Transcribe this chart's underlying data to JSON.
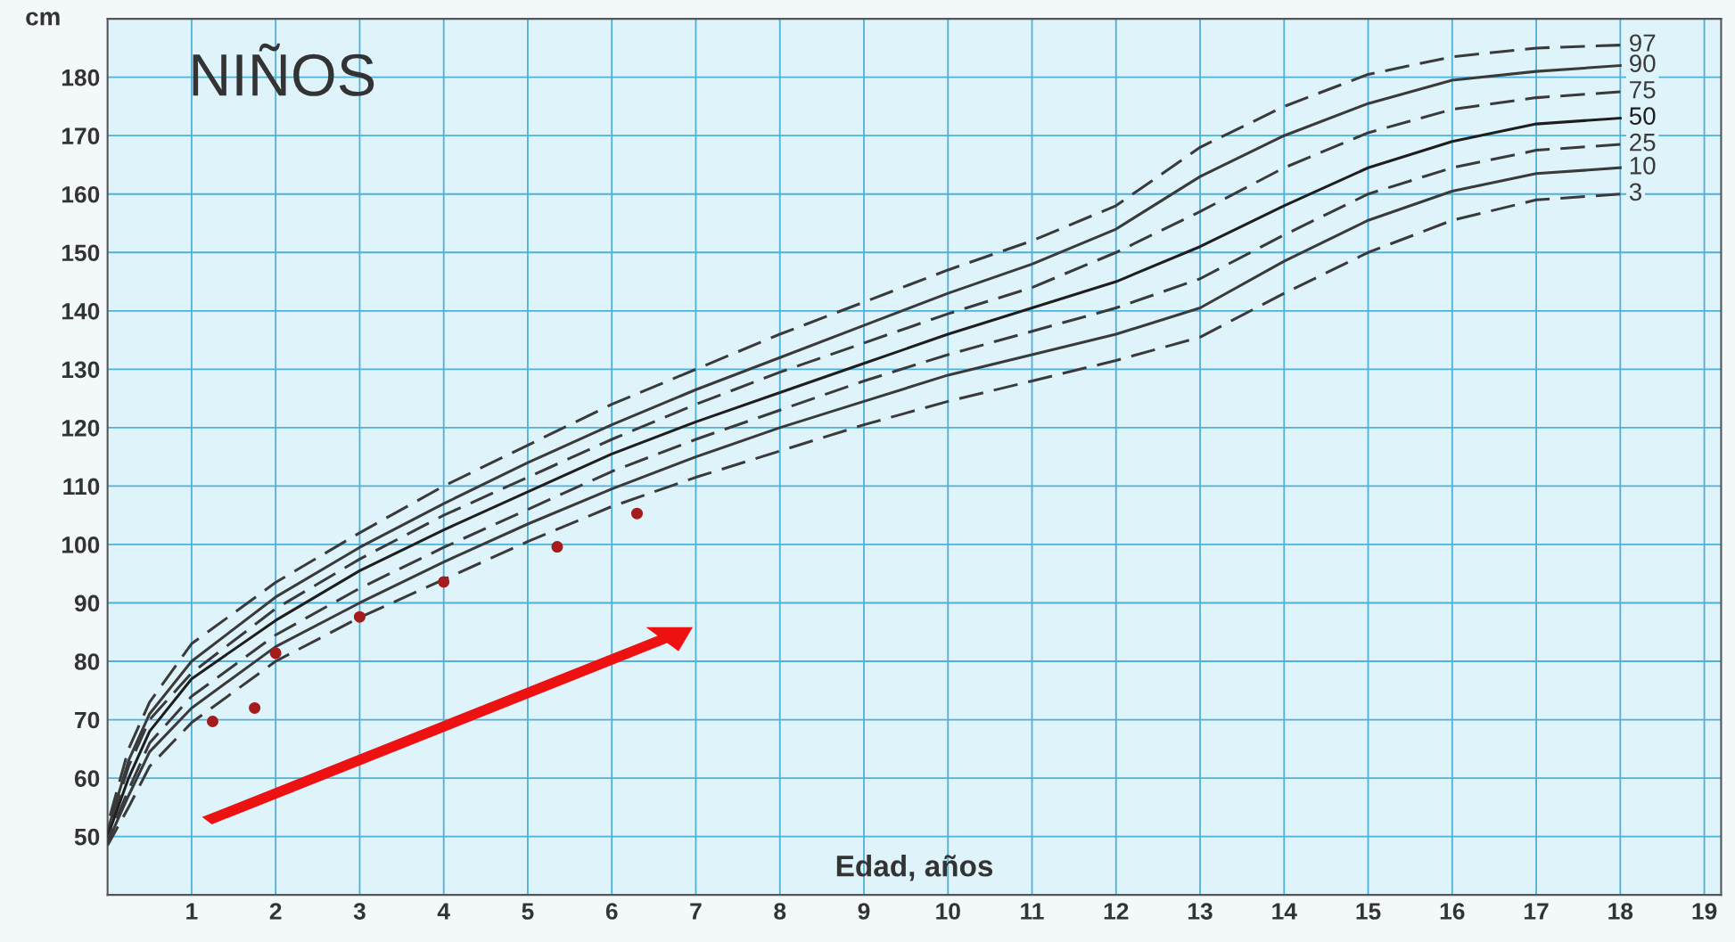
{
  "chart_data": {
    "type": "line",
    "title": "NIÑOS",
    "xlabel": "Edad, años",
    "ylabel": "cm",
    "xlim": [
      0,
      19.2
    ],
    "ylim": [
      40,
      190
    ],
    "xticks": [
      1,
      2,
      3,
      4,
      5,
      6,
      7,
      8,
      9,
      10,
      11,
      12,
      13,
      14,
      15,
      16,
      17,
      18,
      19
    ],
    "yticks": [
      50,
      60,
      70,
      80,
      90,
      100,
      110,
      120,
      130,
      140,
      150,
      160,
      170,
      180
    ],
    "grid": true,
    "legend": false,
    "marker": "none",
    "x": [
      0,
      0.25,
      0.5,
      1,
      2,
      3,
      4,
      5,
      6,
      7,
      8,
      9,
      10,
      11,
      12,
      13,
      14,
      15,
      16,
      17,
      18
    ],
    "series": [
      {
        "name": "97",
        "color": "#3a3a3a",
        "line_style": "dashed",
        "values": [
          52,
          65,
          73,
          83,
          93.5,
          102,
          110,
          117,
          124,
          130,
          136,
          141.5,
          147,
          152,
          158,
          168,
          175,
          180.5,
          183.5,
          185,
          185.5
        ]
      },
      {
        "name": "90",
        "color": "#3a3a3a",
        "line_style": "solid",
        "values": [
          51,
          63,
          71,
          80,
          91,
          99.5,
          107,
          114,
          120.5,
          126.5,
          132,
          137.5,
          143,
          148,
          154,
          163,
          170,
          175.5,
          179.5,
          181,
          182
        ]
      },
      {
        "name": "75",
        "color": "#3a3a3a",
        "line_style": "dashed",
        "values": [
          50.5,
          62,
          70,
          78,
          89,
          97.5,
          105,
          111.5,
          118,
          124,
          129.5,
          134.5,
          139.5,
          144,
          150,
          157,
          164.5,
          170.5,
          174.5,
          176.5,
          177.5
        ]
      },
      {
        "name": "50",
        "color": "#1e1e1e",
        "line_style": "solid",
        "values": [
          50,
          60,
          68,
          77,
          87,
          95.5,
          102.5,
          109,
          115.5,
          121,
          126,
          131,
          136,
          140.5,
          145,
          151,
          158,
          164.5,
          169,
          172,
          173
        ]
      },
      {
        "name": "25",
        "color": "#3a3a3a",
        "line_style": "dashed",
        "values": [
          49.5,
          58,
          66,
          74,
          84.5,
          92.5,
          99.5,
          106,
          112.5,
          118,
          123,
          128,
          132.5,
          136.5,
          140.5,
          145.5,
          153,
          160,
          164.5,
          167.5,
          168.5
        ]
      },
      {
        "name": "10",
        "color": "#3a3a3a",
        "line_style": "solid",
        "values": [
          49,
          57,
          64.5,
          72,
          82.5,
          90,
          97,
          103.5,
          109.5,
          115,
          120,
          124.5,
          129,
          132.5,
          136,
          140.5,
          148.5,
          155.5,
          160.5,
          163.5,
          164.5
        ]
      },
      {
        "name": "3",
        "color": "#3a3a3a",
        "line_style": "dashed",
        "values": [
          48.5,
          55,
          62,
          69.5,
          80,
          87.5,
          94,
          100.5,
          106.5,
          111.5,
          116,
          120.5,
          124.5,
          128,
          131.5,
          135.5,
          143,
          150,
          155.5,
          159,
          160
        ]
      },
      {
        "type": "scatter",
        "color": "#a51c1c",
        "marker": "circle",
        "x": [
          1.25,
          1.75,
          2.0,
          3.0,
          4.0,
          5.35,
          6.3
        ],
        "values": [
          69.7,
          72,
          81.4,
          87.6,
          93.6,
          99.6,
          105.3
        ]
      }
    ]
  }
}
